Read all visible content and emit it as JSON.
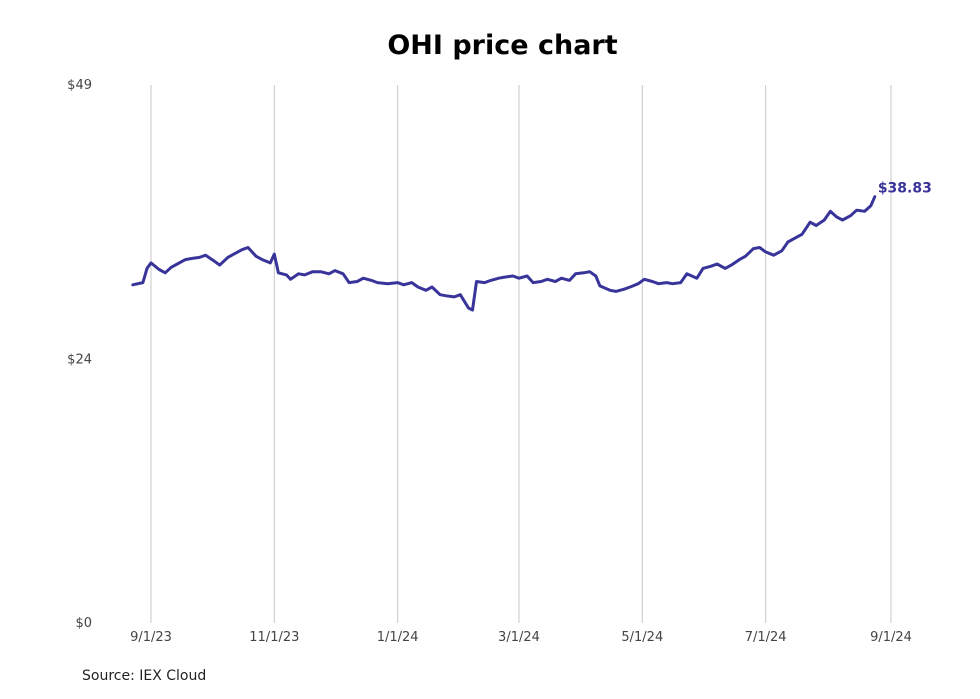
{
  "chart_data": {
    "type": "line",
    "title": "OHI price chart",
    "source": "Source: IEX Cloud",
    "xlabel": "",
    "ylabel": "",
    "ylim": [
      0,
      49
    ],
    "yticks": [
      0,
      24,
      49
    ],
    "ytick_labels": [
      "$0",
      "$24",
      "$49"
    ],
    "xticks": [
      "2023-09-01",
      "2023-11-01",
      "2024-01-01",
      "2024-03-01",
      "2024-05-01",
      "2024-07-01",
      "2024-09-01"
    ],
    "xtick_labels": [
      "9/1/23",
      "11/1/23",
      "1/1/24",
      "3/1/24",
      "5/1/24",
      "7/1/24",
      "9/1/24"
    ],
    "grid": {
      "vertical": true,
      "horizontal": false
    },
    "line_color": "#38349a",
    "end_label": "$38.83",
    "series": [
      {
        "points": [
          [
            "2023-08-23",
            30.8
          ],
          [
            "2023-08-28",
            31.0
          ],
          [
            "2023-08-30",
            32.3
          ],
          [
            "2023-09-01",
            32.8
          ],
          [
            "2023-09-05",
            32.2
          ],
          [
            "2023-09-08",
            31.9
          ],
          [
            "2023-09-11",
            32.4
          ],
          [
            "2023-09-14",
            32.7
          ],
          [
            "2023-09-18",
            33.1
          ],
          [
            "2023-09-21",
            33.2
          ],
          [
            "2023-09-25",
            33.3
          ],
          [
            "2023-09-28",
            33.5
          ],
          [
            "2023-10-02",
            33.0
          ],
          [
            "2023-10-05",
            32.6
          ],
          [
            "2023-10-09",
            33.3
          ],
          [
            "2023-10-12",
            33.6
          ],
          [
            "2023-10-16",
            34.0
          ],
          [
            "2023-10-19",
            34.2
          ],
          [
            "2023-10-23",
            33.4
          ],
          [
            "2023-10-26",
            33.1
          ],
          [
            "2023-10-30",
            32.8
          ],
          [
            "2023-11-01",
            33.6
          ],
          [
            "2023-11-03",
            31.9
          ],
          [
            "2023-11-07",
            31.7
          ],
          [
            "2023-11-09",
            31.3
          ],
          [
            "2023-11-13",
            31.8
          ],
          [
            "2023-11-16",
            31.7
          ],
          [
            "2023-11-20",
            32.0
          ],
          [
            "2023-11-24",
            32.0
          ],
          [
            "2023-11-28",
            31.8
          ],
          [
            "2023-12-01",
            32.1
          ],
          [
            "2023-12-05",
            31.8
          ],
          [
            "2023-12-08",
            31.0
          ],
          [
            "2023-12-12",
            31.1
          ],
          [
            "2023-12-15",
            31.4
          ],
          [
            "2023-12-19",
            31.2
          ],
          [
            "2023-12-22",
            31.0
          ],
          [
            "2023-12-27",
            30.9
          ],
          [
            "2024-01-01",
            31.0
          ],
          [
            "2024-01-04",
            30.8
          ],
          [
            "2024-01-08",
            31.0
          ],
          [
            "2024-01-11",
            30.6
          ],
          [
            "2024-01-15",
            30.3
          ],
          [
            "2024-01-18",
            30.6
          ],
          [
            "2024-01-22",
            29.9
          ],
          [
            "2024-01-25",
            29.8
          ],
          [
            "2024-01-29",
            29.7
          ],
          [
            "2024-02-01",
            29.9
          ],
          [
            "2024-02-05",
            28.7
          ],
          [
            "2024-02-07",
            28.5
          ],
          [
            "2024-02-09",
            31.1
          ],
          [
            "2024-02-13",
            31.0
          ],
          [
            "2024-02-16",
            31.2
          ],
          [
            "2024-02-20",
            31.4
          ],
          [
            "2024-02-23",
            31.5
          ],
          [
            "2024-02-27",
            31.6
          ],
          [
            "2024-03-01",
            31.4
          ],
          [
            "2024-03-05",
            31.6
          ],
          [
            "2024-03-08",
            31.0
          ],
          [
            "2024-03-12",
            31.1
          ],
          [
            "2024-03-15",
            31.3
          ],
          [
            "2024-03-19",
            31.1
          ],
          [
            "2024-03-22",
            31.4
          ],
          [
            "2024-03-26",
            31.2
          ],
          [
            "2024-03-29",
            31.8
          ],
          [
            "2024-04-02",
            31.9
          ],
          [
            "2024-04-05",
            32.0
          ],
          [
            "2024-04-08",
            31.6
          ],
          [
            "2024-04-10",
            30.7
          ],
          [
            "2024-04-15",
            30.3
          ],
          [
            "2024-04-18",
            30.2
          ],
          [
            "2024-04-22",
            30.4
          ],
          [
            "2024-04-25",
            30.6
          ],
          [
            "2024-04-29",
            30.9
          ],
          [
            "2024-05-02",
            31.3
          ],
          [
            "2024-05-06",
            31.1
          ],
          [
            "2024-05-09",
            30.9
          ],
          [
            "2024-05-13",
            31.0
          ],
          [
            "2024-05-16",
            30.9
          ],
          [
            "2024-05-20",
            31.0
          ],
          [
            "2024-05-23",
            31.8
          ],
          [
            "2024-05-28",
            31.4
          ],
          [
            "2024-05-31",
            32.3
          ],
          [
            "2024-06-04",
            32.5
          ],
          [
            "2024-06-07",
            32.7
          ],
          [
            "2024-06-11",
            32.3
          ],
          [
            "2024-06-14",
            32.6
          ],
          [
            "2024-06-18",
            33.1
          ],
          [
            "2024-06-21",
            33.4
          ],
          [
            "2024-06-25",
            34.1
          ],
          [
            "2024-06-28",
            34.2
          ],
          [
            "2024-07-01",
            33.8
          ],
          [
            "2024-07-05",
            33.5
          ],
          [
            "2024-07-09",
            33.9
          ],
          [
            "2024-07-12",
            34.7
          ],
          [
            "2024-07-16",
            35.1
          ],
          [
            "2024-07-19",
            35.4
          ],
          [
            "2024-07-23",
            36.5
          ],
          [
            "2024-07-26",
            36.2
          ],
          [
            "2024-07-30",
            36.7
          ],
          [
            "2024-08-02",
            37.5
          ],
          [
            "2024-08-05",
            37.0
          ],
          [
            "2024-08-08",
            36.7
          ],
          [
            "2024-08-12",
            37.1
          ],
          [
            "2024-08-15",
            37.6
          ],
          [
            "2024-08-19",
            37.5
          ],
          [
            "2024-08-22",
            38.0
          ],
          [
            "2024-08-24",
            38.83
          ]
        ]
      }
    ]
  }
}
